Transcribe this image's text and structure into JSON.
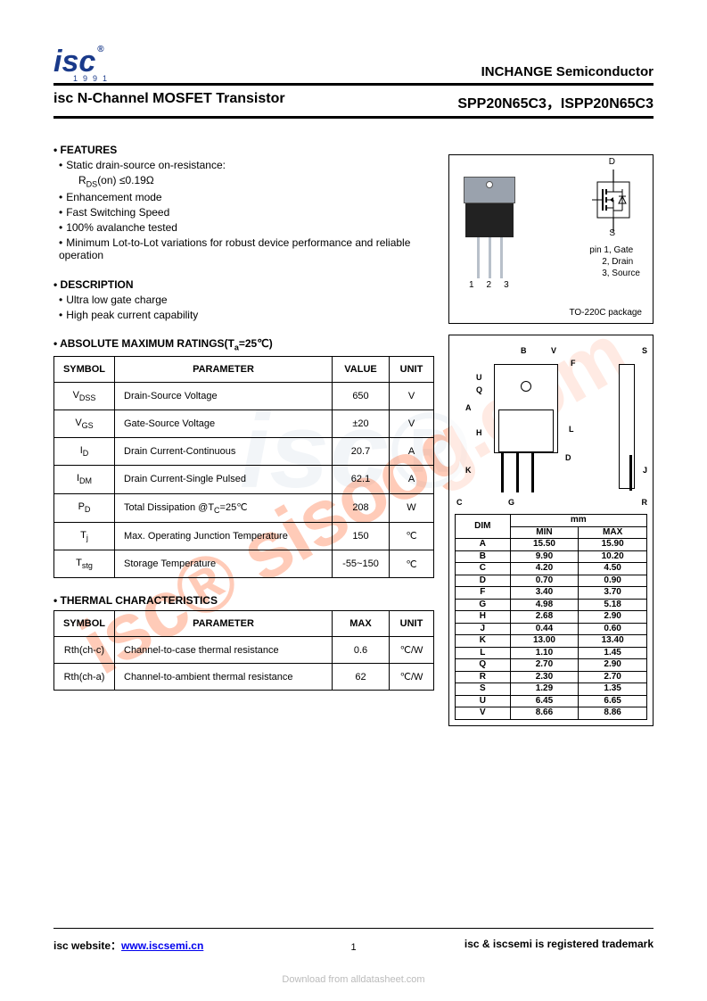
{
  "header": {
    "logo_text": "isc",
    "logo_year": "1991",
    "brand": "INCHANGE Semiconductor"
  },
  "title": {
    "left": "isc N-Channel MOSFET Transistor",
    "right": "SPP20N65C3，ISPP20N65C3"
  },
  "features": {
    "heading": "• FEATURES",
    "items": [
      "Static drain-source on-resistance:",
      "Enhancement mode",
      "Fast Switching Speed",
      "100% avalanche tested",
      "Minimum Lot-to-Lot variations for robust device performance and reliable operation"
    ],
    "rds_line": "RDS(on) ≤0.19Ω"
  },
  "description": {
    "heading": "• DESCRIPTION",
    "items": [
      "Ultra low gate charge",
      "High peak current capability"
    ]
  },
  "ratings": {
    "heading": "• ABSOLUTE MAXIMUM RATINGS(Ta=25℃)",
    "columns": [
      "SYMBOL",
      "PARAMETER",
      "VALUE",
      "UNIT"
    ],
    "rows": [
      {
        "sym": "VDSS",
        "param": "Drain-Source Voltage",
        "val": "650",
        "unit": "V"
      },
      {
        "sym": "VGS",
        "param": "Gate-Source Voltage",
        "val": "±20",
        "unit": "V"
      },
      {
        "sym": "ID",
        "param": "Drain Current-Continuous",
        "val": "20.7",
        "unit": "A"
      },
      {
        "sym": "IDM",
        "param": "Drain Current-Single Pulsed",
        "val": "62.1",
        "unit": "A"
      },
      {
        "sym": "PD",
        "param": "Total Dissipation @TC=25℃",
        "val": "208",
        "unit": "W"
      },
      {
        "sym": "Tj",
        "param": "Max. Operating Junction Temperature",
        "val": "150",
        "unit": "℃"
      },
      {
        "sym": "Tstg",
        "param": "Storage Temperature",
        "val": "-55~150",
        "unit": "℃"
      }
    ]
  },
  "thermal": {
    "heading": "• THERMAL CHARACTERISTICS",
    "columns": [
      "SYMBOL",
      "PARAMETER",
      "MAX",
      "UNIT"
    ],
    "rows": [
      {
        "sym": "Rth(ch-c)",
        "param": "Channel-to-case thermal resistance",
        "val": "0.6",
        "unit": "℃/W"
      },
      {
        "sym": "Rth(ch-a)",
        "param": "Channel-to-ambient thermal resistance",
        "val": "62",
        "unit": "℃/W"
      }
    ]
  },
  "package": {
    "pin_nums": "123",
    "d_label": "D",
    "s_label": "S",
    "pin_labels": "pin 1, Gate\n     2, Drain\n     3, Source",
    "name": "TO-220C package"
  },
  "dims": {
    "header_mm": "mm",
    "columns": [
      "DIM",
      "MIN",
      "MAX"
    ],
    "rows": [
      [
        "A",
        "15.50",
        "15.90"
      ],
      [
        "B",
        "9.90",
        "10.20"
      ],
      [
        "C",
        "4.20",
        "4.50"
      ],
      [
        "D",
        "0.70",
        "0.90"
      ],
      [
        "F",
        "3.40",
        "3.70"
      ],
      [
        "G",
        "4.98",
        "5.18"
      ],
      [
        "H",
        "2.68",
        "2.90"
      ],
      [
        "J",
        "0.44",
        "0.60"
      ],
      [
        "K",
        "13.00",
        "13.40"
      ],
      [
        "L",
        "1.10",
        "1.45"
      ],
      [
        "Q",
        "2.70",
        "2.90"
      ],
      [
        "R",
        "2.30",
        "2.70"
      ],
      [
        "S",
        "1.29",
        "1.35"
      ],
      [
        "U",
        "6.45",
        "6.65"
      ],
      [
        "V",
        "8.66",
        "8.86"
      ]
    ]
  },
  "footer": {
    "left_pre": "isc website：",
    "link": "www.iscsemi.cn",
    "page": "1",
    "right": "isc & iscsemi is registered trademark"
  },
  "download": "Download from alldatasheet.com",
  "watermark": "isc® sisoog.com",
  "mech_labels": [
    "A",
    "B",
    "C",
    "D",
    "F",
    "G",
    "H",
    "J",
    "K",
    "L",
    "Q",
    "R",
    "S",
    "U",
    "V"
  ]
}
